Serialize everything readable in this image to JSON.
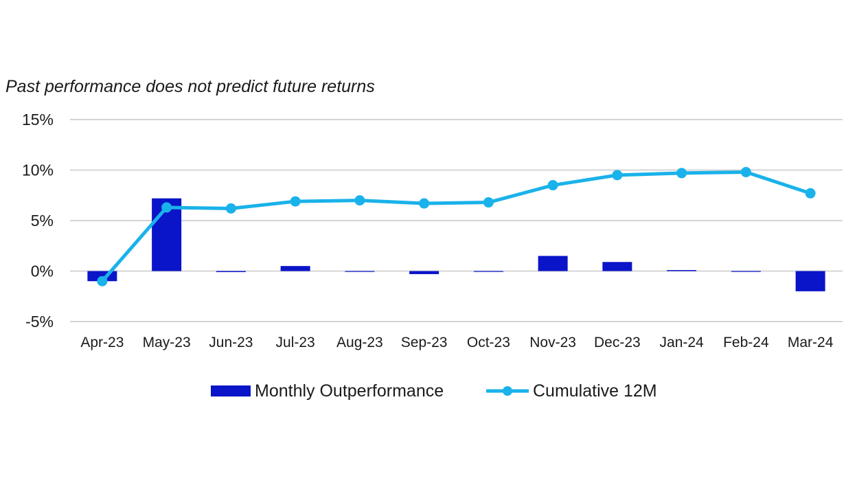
{
  "subtitle": "Past performance does not predict future returns",
  "colors": {
    "bar": "#0a14c8",
    "line": "#1ab2ea",
    "grid": "#d4d4d4",
    "text": "#1a1a1a"
  },
  "chart_data": {
    "type": "bar",
    "subtitle": "Past performance does not predict future returns",
    "categories": [
      "Apr-23",
      "May-23",
      "Jun-23",
      "Jul-23",
      "Aug-23",
      "Sep-23",
      "Oct-23",
      "Nov-23",
      "Dec-23",
      "Jan-24",
      "Feb-24",
      "Mar-24"
    ],
    "y_ticks": [
      "15%",
      "10%",
      "5%",
      "0%",
      "-5%"
    ],
    "ylim": [
      -5,
      15
    ],
    "grid": true,
    "legend_position": "bottom",
    "series": [
      {
        "name": "Monthly Outperformance",
        "type": "bar",
        "values": [
          -1.0,
          7.2,
          -0.1,
          0.5,
          0.0,
          -0.3,
          0.0,
          1.5,
          0.9,
          0.1,
          0.0,
          -2.0
        ]
      },
      {
        "name": "Cumulative 12M",
        "type": "line",
        "values": [
          -1.0,
          6.3,
          6.2,
          6.9,
          7.0,
          6.7,
          6.8,
          8.5,
          9.5,
          9.7,
          9.8,
          7.7
        ]
      }
    ]
  }
}
